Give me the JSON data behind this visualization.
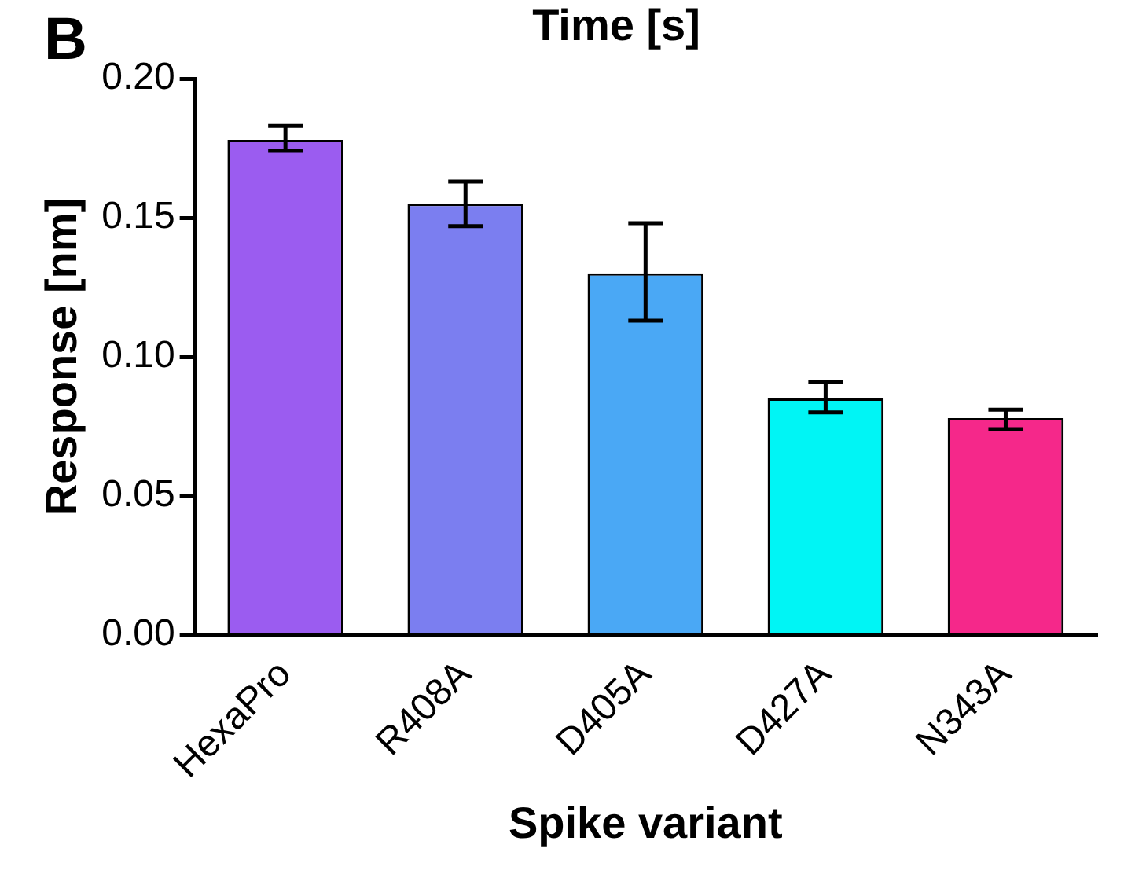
{
  "chart_data": {
    "type": "bar",
    "xlabel": "Spike variant",
    "ylabel": "Response [nm]",
    "annotations": [
      "B",
      "Time [s]"
    ],
    "categories": [
      "HexaPro",
      "R408A",
      "D405A",
      "D427A",
      "N343A"
    ],
    "values": [
      0.178,
      0.155,
      0.13,
      0.085,
      0.078
    ],
    "colors": [
      "#9b5cf0",
      "#7b7ef0",
      "#4aa8f5",
      "#00f5f5",
      "#f5288a"
    ],
    "errors": [
      [
        0.174,
        0.183
      ],
      [
        0.147,
        0.163
      ],
      [
        0.113,
        0.148
      ],
      [
        0.08,
        0.091
      ],
      [
        0.074,
        0.081
      ]
    ],
    "ylim": [
      0,
      0.2
    ],
    "yticks": [
      {
        "value": 0,
        "label": "0.00"
      },
      {
        "value": 0.05,
        "label": "0.05"
      },
      {
        "value": 0.1,
        "label": "0.10"
      },
      {
        "value": 0.15,
        "label": "0.15"
      },
      {
        "value": 0.2,
        "label": "0.20"
      }
    ],
    "grid": false,
    "legend": false
  }
}
